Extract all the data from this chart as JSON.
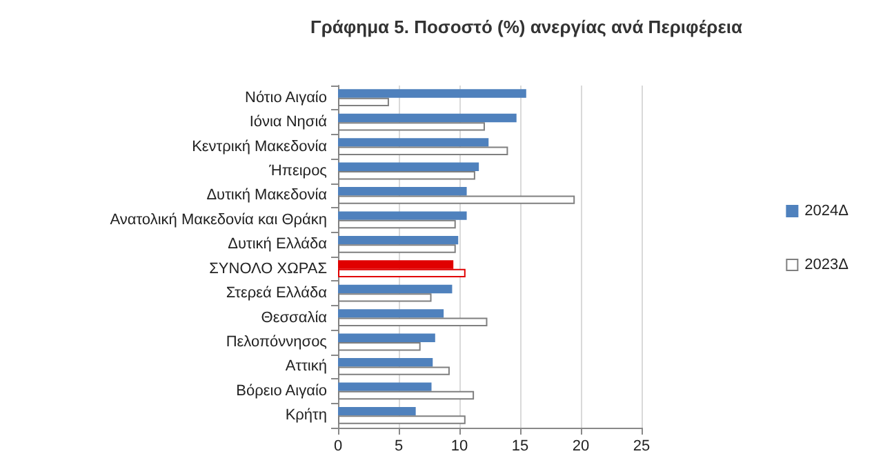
{
  "chart_data": {
    "type": "bar",
    "orientation": "horizontal",
    "title": "Γράφημα 5. Ποσοστό (%) ανεργίας ανά Περιφέρεια",
    "categories": [
      "Νότιο Αιγαίο",
      "Ιόνια Νησιά",
      "Κεντρική Μακεδονία",
      "Ήπειρος",
      "Δυτική Μακεδονία",
      "Ανατολική Μακεδονία και Θράκη",
      "Δυτική Ελλάδα",
      "ΣΥΝΟΛΟ ΧΩΡΑΣ",
      "Στερεά Ελλάδα",
      "Θεσσαλία",
      "Πελοπόννησος",
      "Αττική",
      "Βόρειο Αιγαίο",
      "Κρήτη"
    ],
    "series": [
      {
        "name": "2024Δ",
        "color": "#4f81bd",
        "colors": [
          "#4f81bd",
          "#4f81bd",
          "#4f81bd",
          "#4f81bd",
          "#4f81bd",
          "#4f81bd",
          "#4f81bd",
          "#e00000",
          "#4f81bd",
          "#4f81bd",
          "#4f81bd",
          "#4f81bd",
          "#4f81bd",
          "#4f81bd"
        ],
        "values": [
          15.5,
          14.7,
          12.4,
          11.6,
          10.6,
          10.6,
          9.9,
          9.5,
          9.4,
          8.7,
          8.0,
          7.8,
          7.7,
          6.4
        ]
      },
      {
        "name": "2023Δ",
        "color": "#ffffff",
        "values": [
          4.2,
          12.1,
          14.0,
          11.3,
          19.5,
          9.7,
          9.7,
          10.5,
          7.7,
          12.3,
          6.8,
          9.2,
          11.2,
          10.5
        ]
      }
    ],
    "xlim": [
      0,
      25
    ],
    "xticks": [
      0,
      5,
      10,
      15,
      20,
      25
    ],
    "grid": "x",
    "legend": "right"
  }
}
